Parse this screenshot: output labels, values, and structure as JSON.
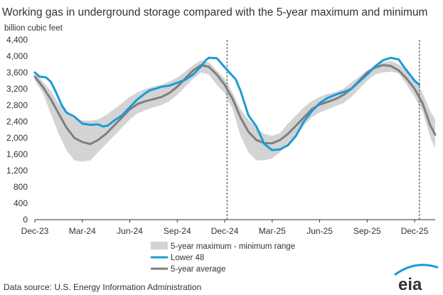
{
  "chart_data": {
    "type": "line",
    "title": "Working gas in underground  storage compared with the 5-year maximum and minimum",
    "y_unit_label": "billion cubic feet",
    "ylim": [
      0,
      4400
    ],
    "y_ticks": [
      "0",
      "400",
      "800",
      "1,200",
      "1,600",
      "2,000",
      "2,400",
      "2,800",
      "3,200",
      "3,600",
      "4,000",
      "4,400"
    ],
    "x_ticks": [
      "Dec-23",
      "Mar-24",
      "Jun-24",
      "Sep-24",
      "Dec-24",
      "Mar-25",
      "Jun-25",
      "Sep-25",
      "Dec-25"
    ],
    "xlim": [
      0,
      25.3
    ],
    "vertical_markers": [
      12.15,
      24.3
    ],
    "grid": false,
    "legend_placement": "bottom-center",
    "band": {
      "name": "5-year maximum - minimum range",
      "color": "#d9d9d9",
      "x": [
        0,
        0.5,
        1,
        1.5,
        2,
        2.5,
        3,
        3.5,
        4,
        4.5,
        5,
        5.5,
        6,
        6.5,
        7,
        7.5,
        8,
        8.5,
        9,
        9.5,
        10,
        10.5,
        11,
        11.5,
        12,
        12.5,
        13,
        13.5,
        14,
        14.5,
        15,
        15.5,
        16,
        16.5,
        17,
        17.5,
        18,
        18.5,
        19,
        19.5,
        20,
        20.5,
        21,
        21.5,
        22,
        22.5,
        23,
        23.5,
        24,
        24.5,
        25,
        25.3
      ],
      "max": [
        3600,
        3380,
        3150,
        2850,
        2600,
        2480,
        2430,
        2420,
        2450,
        2560,
        2700,
        2850,
        3000,
        3120,
        3200,
        3260,
        3300,
        3380,
        3480,
        3620,
        3780,
        3900,
        3850,
        3650,
        3450,
        3100,
        2700,
        2450,
        2250,
        2100,
        2050,
        2120,
        2350,
        2550,
        2750,
        2900,
        3000,
        3080,
        3120,
        3200,
        3350,
        3500,
        3650,
        3780,
        3850,
        3880,
        3800,
        3650,
        3450,
        3100,
        2650,
        2450
      ],
      "min": [
        3400,
        3100,
        2600,
        2100,
        1700,
        1450,
        1420,
        1450,
        1650,
        1850,
        2050,
        2250,
        2450,
        2600,
        2680,
        2750,
        2800,
        2900,
        3050,
        3250,
        3450,
        3600,
        3550,
        3300,
        3100,
        2700,
        2050,
        1650,
        1450,
        1450,
        1500,
        1650,
        1850,
        2050,
        2300,
        2500,
        2620,
        2700,
        2780,
        2850,
        3000,
        3200,
        3400,
        3550,
        3600,
        3620,
        3580,
        3300,
        3000,
        2650,
        2000,
        1750
      ]
    },
    "series": [
      {
        "name": "Lower 48",
        "color": "#1a9bd7",
        "x": [
          0,
          0.3,
          0.7,
          1,
          1.3,
          1.7,
          2,
          2.5,
          3,
          3.5,
          4,
          4.3,
          4.6,
          5,
          5.5,
          6,
          6.5,
          7,
          7.3,
          7.6,
          8,
          8.5,
          9,
          9.5,
          10,
          10.5,
          10.8,
          11,
          11.5,
          12,
          12.3,
          12.7,
          13,
          13.5,
          14,
          14.5,
          15,
          15.5,
          16,
          16.5,
          17,
          17.5,
          18,
          18.5,
          19,
          19.5,
          20,
          20.5,
          21,
          21.5,
          22,
          22.5,
          23,
          23.3,
          23.7,
          24,
          24.3
        ],
        "values": [
          3600,
          3500,
          3480,
          3380,
          3150,
          2800,
          2620,
          2520,
          2350,
          2320,
          2330,
          2280,
          2300,
          2420,
          2550,
          2750,
          2950,
          3100,
          3170,
          3200,
          3250,
          3280,
          3350,
          3420,
          3550,
          3750,
          3900,
          3960,
          3950,
          3730,
          3600,
          3430,
          3150,
          2550,
          2280,
          1850,
          1700,
          1720,
          1820,
          2050,
          2400,
          2650,
          2850,
          2980,
          3060,
          3120,
          3200,
          3380,
          3550,
          3750,
          3900,
          3960,
          3920,
          3750,
          3550,
          3400,
          3300
        ]
      },
      {
        "name": "5-year average",
        "color": "#7f7f7f",
        "x": [
          0,
          0.5,
          1,
          1.5,
          2,
          2.5,
          3,
          3.5,
          4,
          4.5,
          5,
          5.5,
          6,
          6.5,
          7,
          7.5,
          8,
          8.5,
          9,
          9.5,
          10,
          10.5,
          11,
          11.5,
          12,
          12.5,
          13,
          13.5,
          14,
          14.5,
          15,
          15.5,
          16,
          16.5,
          17,
          17.5,
          18,
          18.5,
          19,
          19.5,
          20,
          20.5,
          21,
          21.5,
          22,
          22.5,
          23,
          23.5,
          24,
          24.5,
          25,
          25.3
        ],
        "values": [
          3500,
          3250,
          2950,
          2600,
          2250,
          2000,
          1900,
          1850,
          1950,
          2100,
          2300,
          2500,
          2700,
          2830,
          2900,
          2950,
          3000,
          3100,
          3250,
          3450,
          3650,
          3780,
          3740,
          3550,
          3300,
          2950,
          2500,
          2150,
          1950,
          1870,
          1870,
          1950,
          2100,
          2300,
          2500,
          2700,
          2820,
          2880,
          2950,
          3050,
          3200,
          3400,
          3600,
          3720,
          3780,
          3760,
          3650,
          3450,
          3200,
          2850,
          2300,
          2080
        ]
      }
    ]
  },
  "footer": {
    "source": "Data source:  U.S. Energy Information Administration",
    "logo_text": "eia"
  }
}
